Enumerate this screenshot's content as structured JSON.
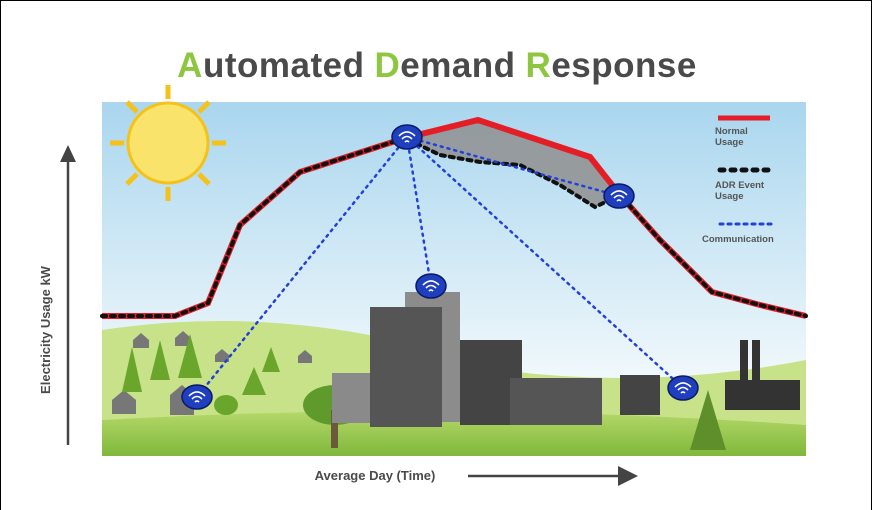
{
  "title_words": [
    "Automated",
    "Demand",
    "Response"
  ],
  "legend": {
    "normal": "Normal Usage",
    "adr": "ADR Event Usage",
    "communication": "Communication"
  },
  "y_axis_label": "Electricity Usage kW",
  "x_axis_label": "Average Day (Time)"
}
